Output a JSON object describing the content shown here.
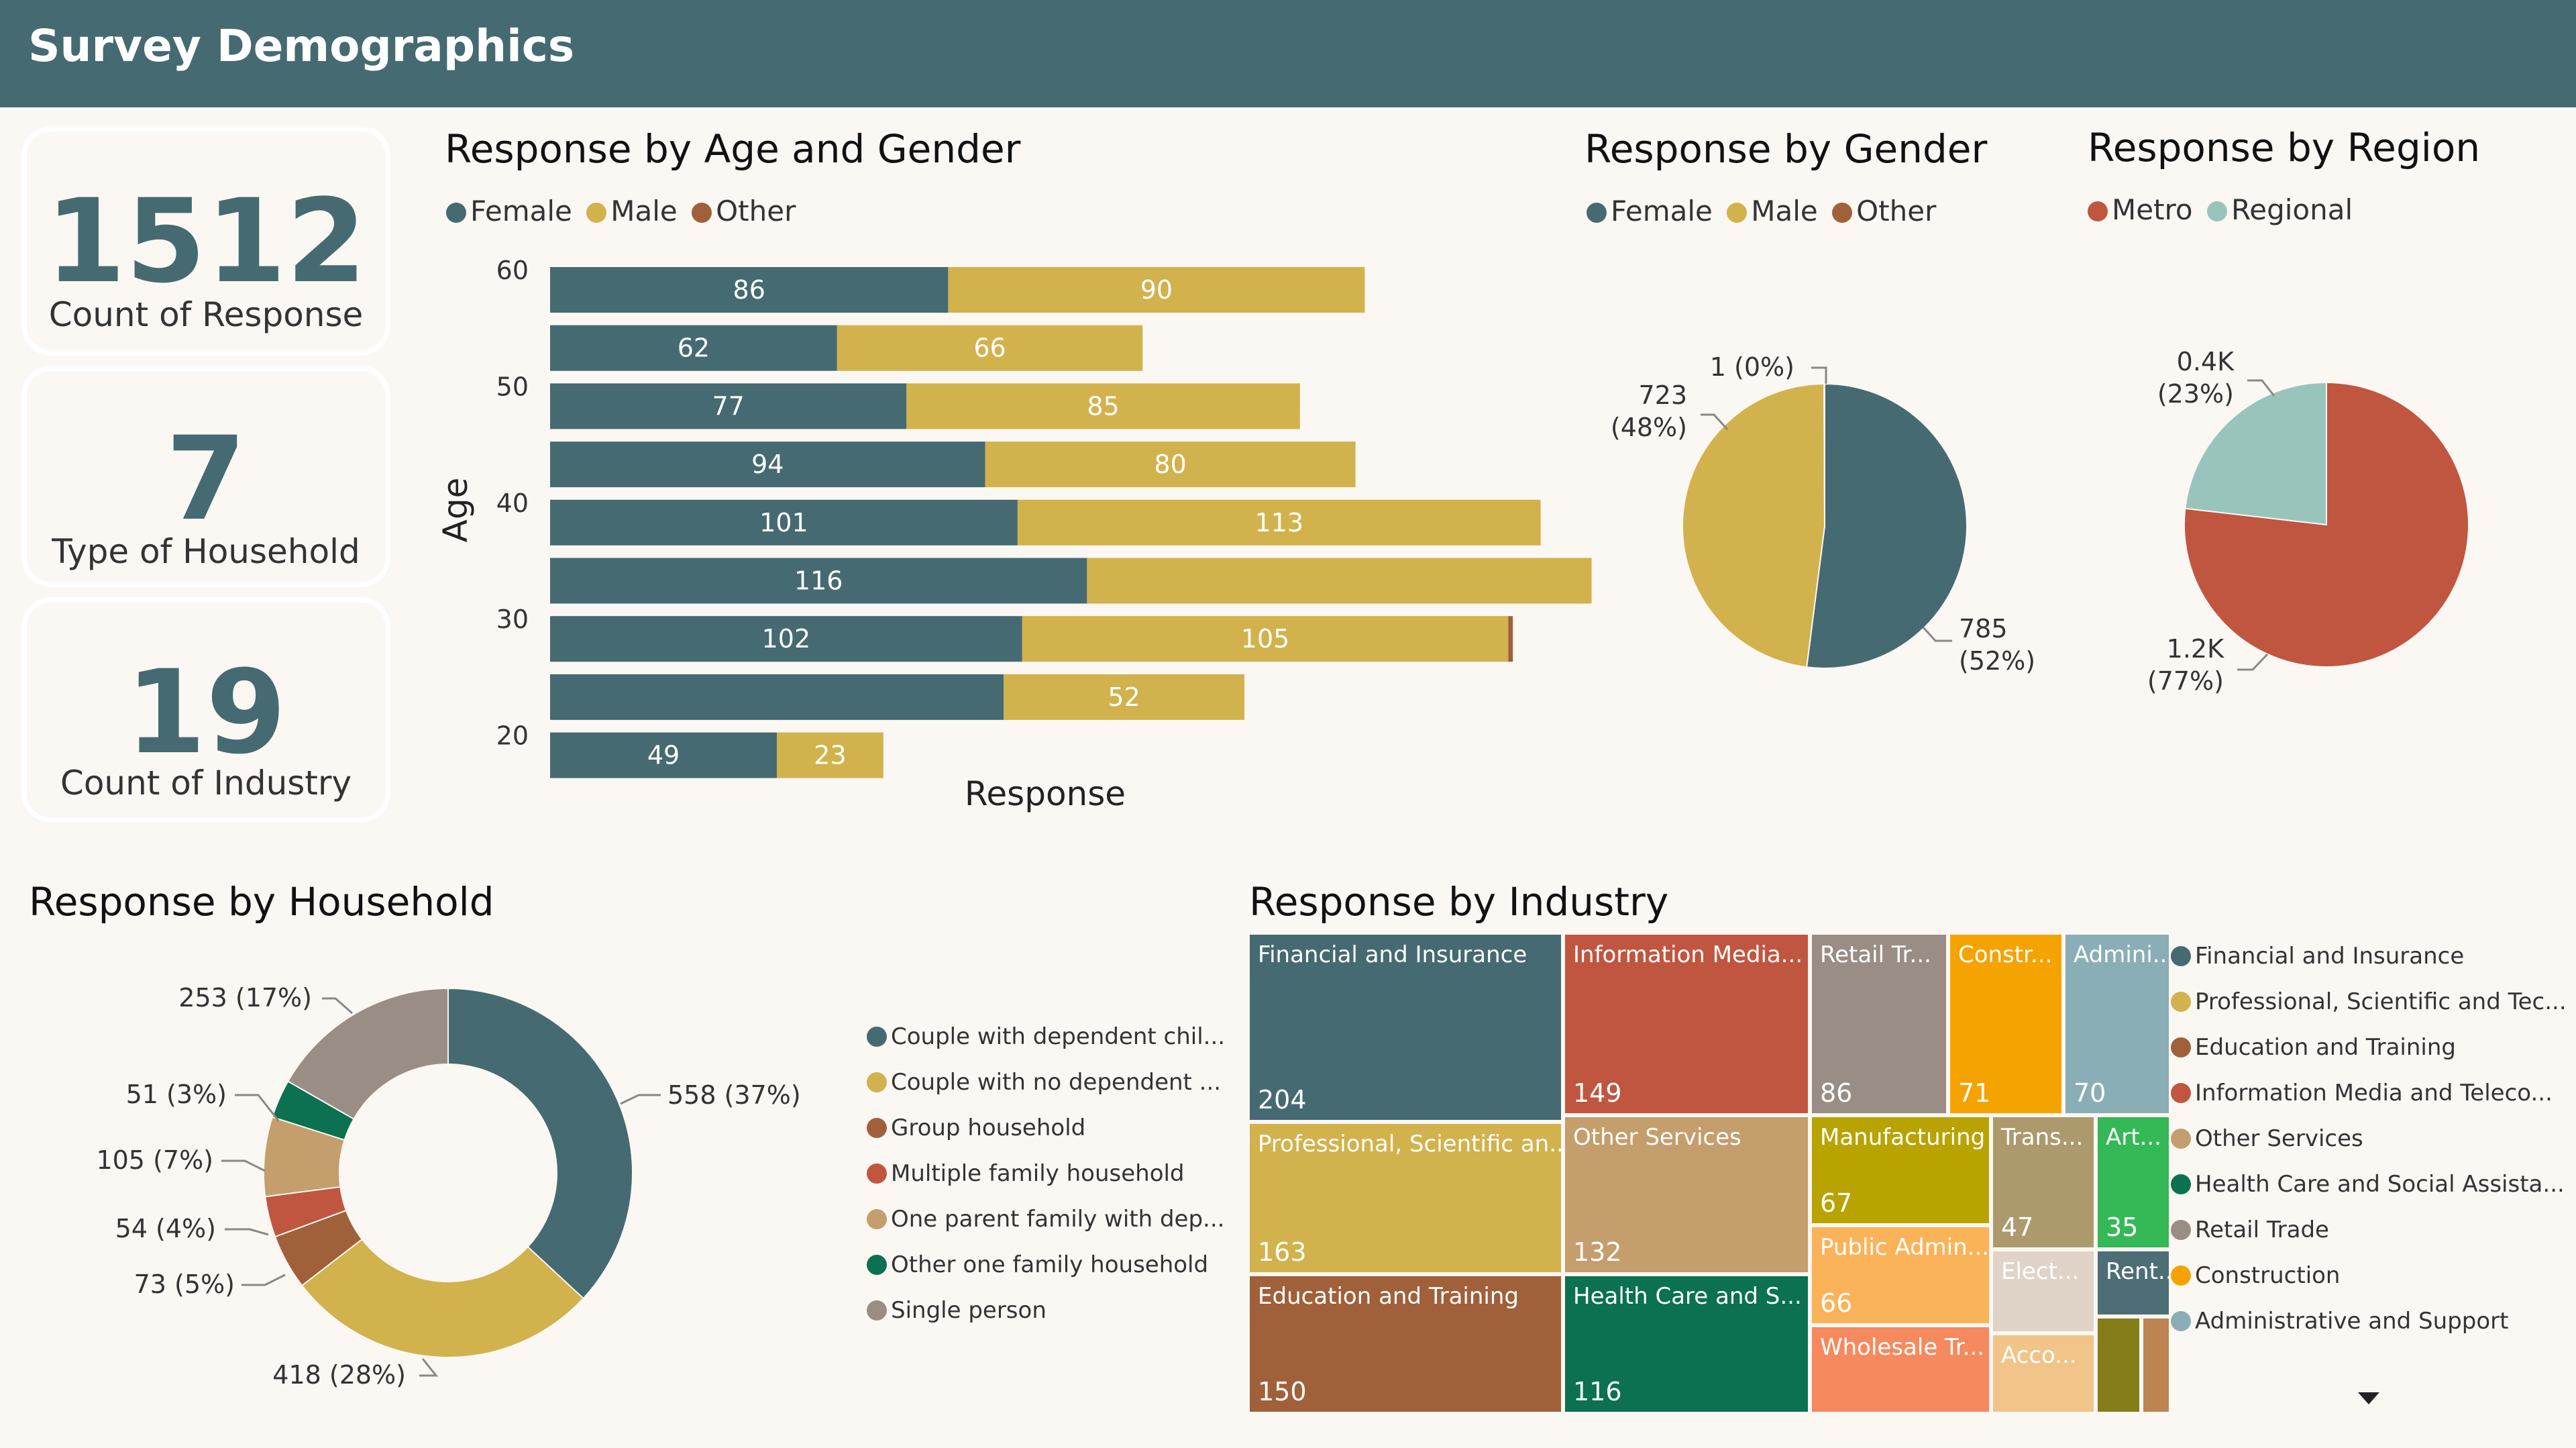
{
  "header": {
    "title": "Survey Demographics"
  },
  "kpis": [
    {
      "value": "1512",
      "label": "Count of Response"
    },
    {
      "value": "7",
      "label": "Type of Household"
    },
    {
      "value": "19",
      "label": "Count of Industry"
    }
  ],
  "colors": {
    "female": "#456a72",
    "male": "#d2b24c",
    "other": "#a0603a",
    "metro": "#c0563f",
    "regional": "#99c4bb",
    "header": "#456a72"
  },
  "chart_data": [
    {
      "type": "bar",
      "title": "Response by Age and Gender",
      "xlabel": "Response",
      "ylabel": "Age",
      "yticks": [
        "60",
        "50",
        "40",
        "30",
        "20"
      ],
      "legend": [
        "Female",
        "Male",
        "Other"
      ],
      "legend_position": "top-left",
      "categories": [
        "60",
        "55",
        "50",
        "45",
        "40",
        "35",
        "30",
        "25",
        "20"
      ],
      "series": [
        {
          "name": "Female",
          "values": [
            86,
            62,
            77,
            94,
            101,
            116,
            102,
            98,
            49
          ],
          "labels": [
            "86",
            "62",
            "77",
            "94",
            "101",
            "116",
            "102",
            "",
            "49"
          ]
        },
        {
          "name": "Male",
          "values": [
            90,
            66,
            85,
            80,
            113,
            109,
            105,
            52,
            23
          ],
          "labels": [
            "90",
            "66",
            "85",
            "80",
            "113",
            "",
            "105",
            "52",
            "23"
          ]
        },
        {
          "name": "Other",
          "values": [
            0,
            0,
            0,
            0,
            0,
            0,
            1,
            0,
            0
          ],
          "labels": [
            "",
            "",
            "",
            "",
            "",
            "",
            "",
            "",
            ""
          ]
        }
      ],
      "xlim": [
        0,
        230
      ]
    },
    {
      "type": "pie",
      "title": "Response by Gender",
      "legend": [
        "Female",
        "Male",
        "Other"
      ],
      "labels": [
        "Female",
        "Male",
        "Other"
      ],
      "values": [
        785,
        723,
        1
      ],
      "data_labels": [
        [
          "785",
          "(52%)"
        ],
        [
          "723",
          "(48%)"
        ],
        [
          "1 (0%)"
        ]
      ]
    },
    {
      "type": "pie",
      "title": "Response by Region",
      "legend": [
        "Metro",
        "Regional"
      ],
      "labels": [
        "Metro",
        "Regional"
      ],
      "values": [
        1160,
        350
      ],
      "data_labels": [
        [
          "1.2K",
          "(77%)"
        ],
        [
          "0.4K",
          "(23%)"
        ]
      ]
    },
    {
      "type": "pie",
      "subtype": "donut",
      "title": "Response by Household",
      "labels": [
        "Couple with dependent children",
        "Couple with no dependent children",
        "Group household",
        "Multiple family household",
        "One parent family with dependent children",
        "Other one family household",
        "Single person"
      ],
      "legend": [
        "Couple with dependent chil...",
        "Couple with no dependent ...",
        "Group household",
        "Multiple family household",
        "One parent family with dep...",
        "Other one family household",
        "Single person"
      ],
      "values": [
        558,
        418,
        73,
        54,
        105,
        51,
        253
      ],
      "data_labels": [
        "558 (37%)",
        "418 (28%)",
        "73 (5%)",
        "54 (4%)",
        "105 (7%)",
        "51 (3%)",
        "253 (17%)"
      ],
      "colors": [
        "#456a72",
        "#d2b24c",
        "#a0603a",
        "#c0563f",
        "#c49e6c",
        "#0b7150",
        "#9a8d85"
      ]
    },
    {
      "type": "treemap",
      "title": "Response by Industry",
      "legend": [
        "Financial and Insurance",
        "Professional, Scientific and Tec...",
        "Education and Training",
        "Information Media and Teleco...",
        "Other Services",
        "Health Care and Social Assista...",
        "Retail Trade",
        "Construction",
        "Administrative and Support"
      ],
      "cells": [
        {
          "label": "Financial and Insurance",
          "value": "204",
          "color": "#456a72"
        },
        {
          "label": "Professional, Scientific an...",
          "value": "163",
          "color": "#d2b24c"
        },
        {
          "label": "Education and Training",
          "value": "150",
          "color": "#a0603a"
        },
        {
          "label": "Information Media...",
          "value": "149",
          "color": "#c0563f"
        },
        {
          "label": "Other Services",
          "value": "132",
          "color": "#c49e6c"
        },
        {
          "label": "Health Care and S...",
          "value": "116",
          "color": "#0b7150"
        },
        {
          "label": "Retail Tr...",
          "value": "86",
          "color": "#9a8d85"
        },
        {
          "label": "Constr...",
          "value": "71",
          "color": "#f5a300"
        },
        {
          "label": "Admini...",
          "value": "70",
          "color": "#8aaeb6"
        },
        {
          "label": "Manufacturing",
          "value": "67",
          "color": "#b8a300"
        },
        {
          "label": "Public Admin...",
          "value": "66",
          "color": "#fbb35a"
        },
        {
          "label": "Wholesale Tr...",
          "value": "",
          "color": "#f6895e"
        },
        {
          "label": "Trans...",
          "value": "47",
          "color": "#ad9a6c"
        },
        {
          "label": "Art...",
          "value": "35",
          "color": "#35b856"
        },
        {
          "label": "Elect...",
          "value": "",
          "color": "#e0d4c8"
        },
        {
          "label": "Acco...",
          "value": "",
          "color": "#f1c48a"
        },
        {
          "label": "Rent...",
          "value": "",
          "color": "#4e6e76"
        },
        {
          "label": "",
          "value": "",
          "color": "#857c1a"
        },
        {
          "label": "",
          "value": "",
          "color": "#bd8452"
        }
      ]
    }
  ]
}
